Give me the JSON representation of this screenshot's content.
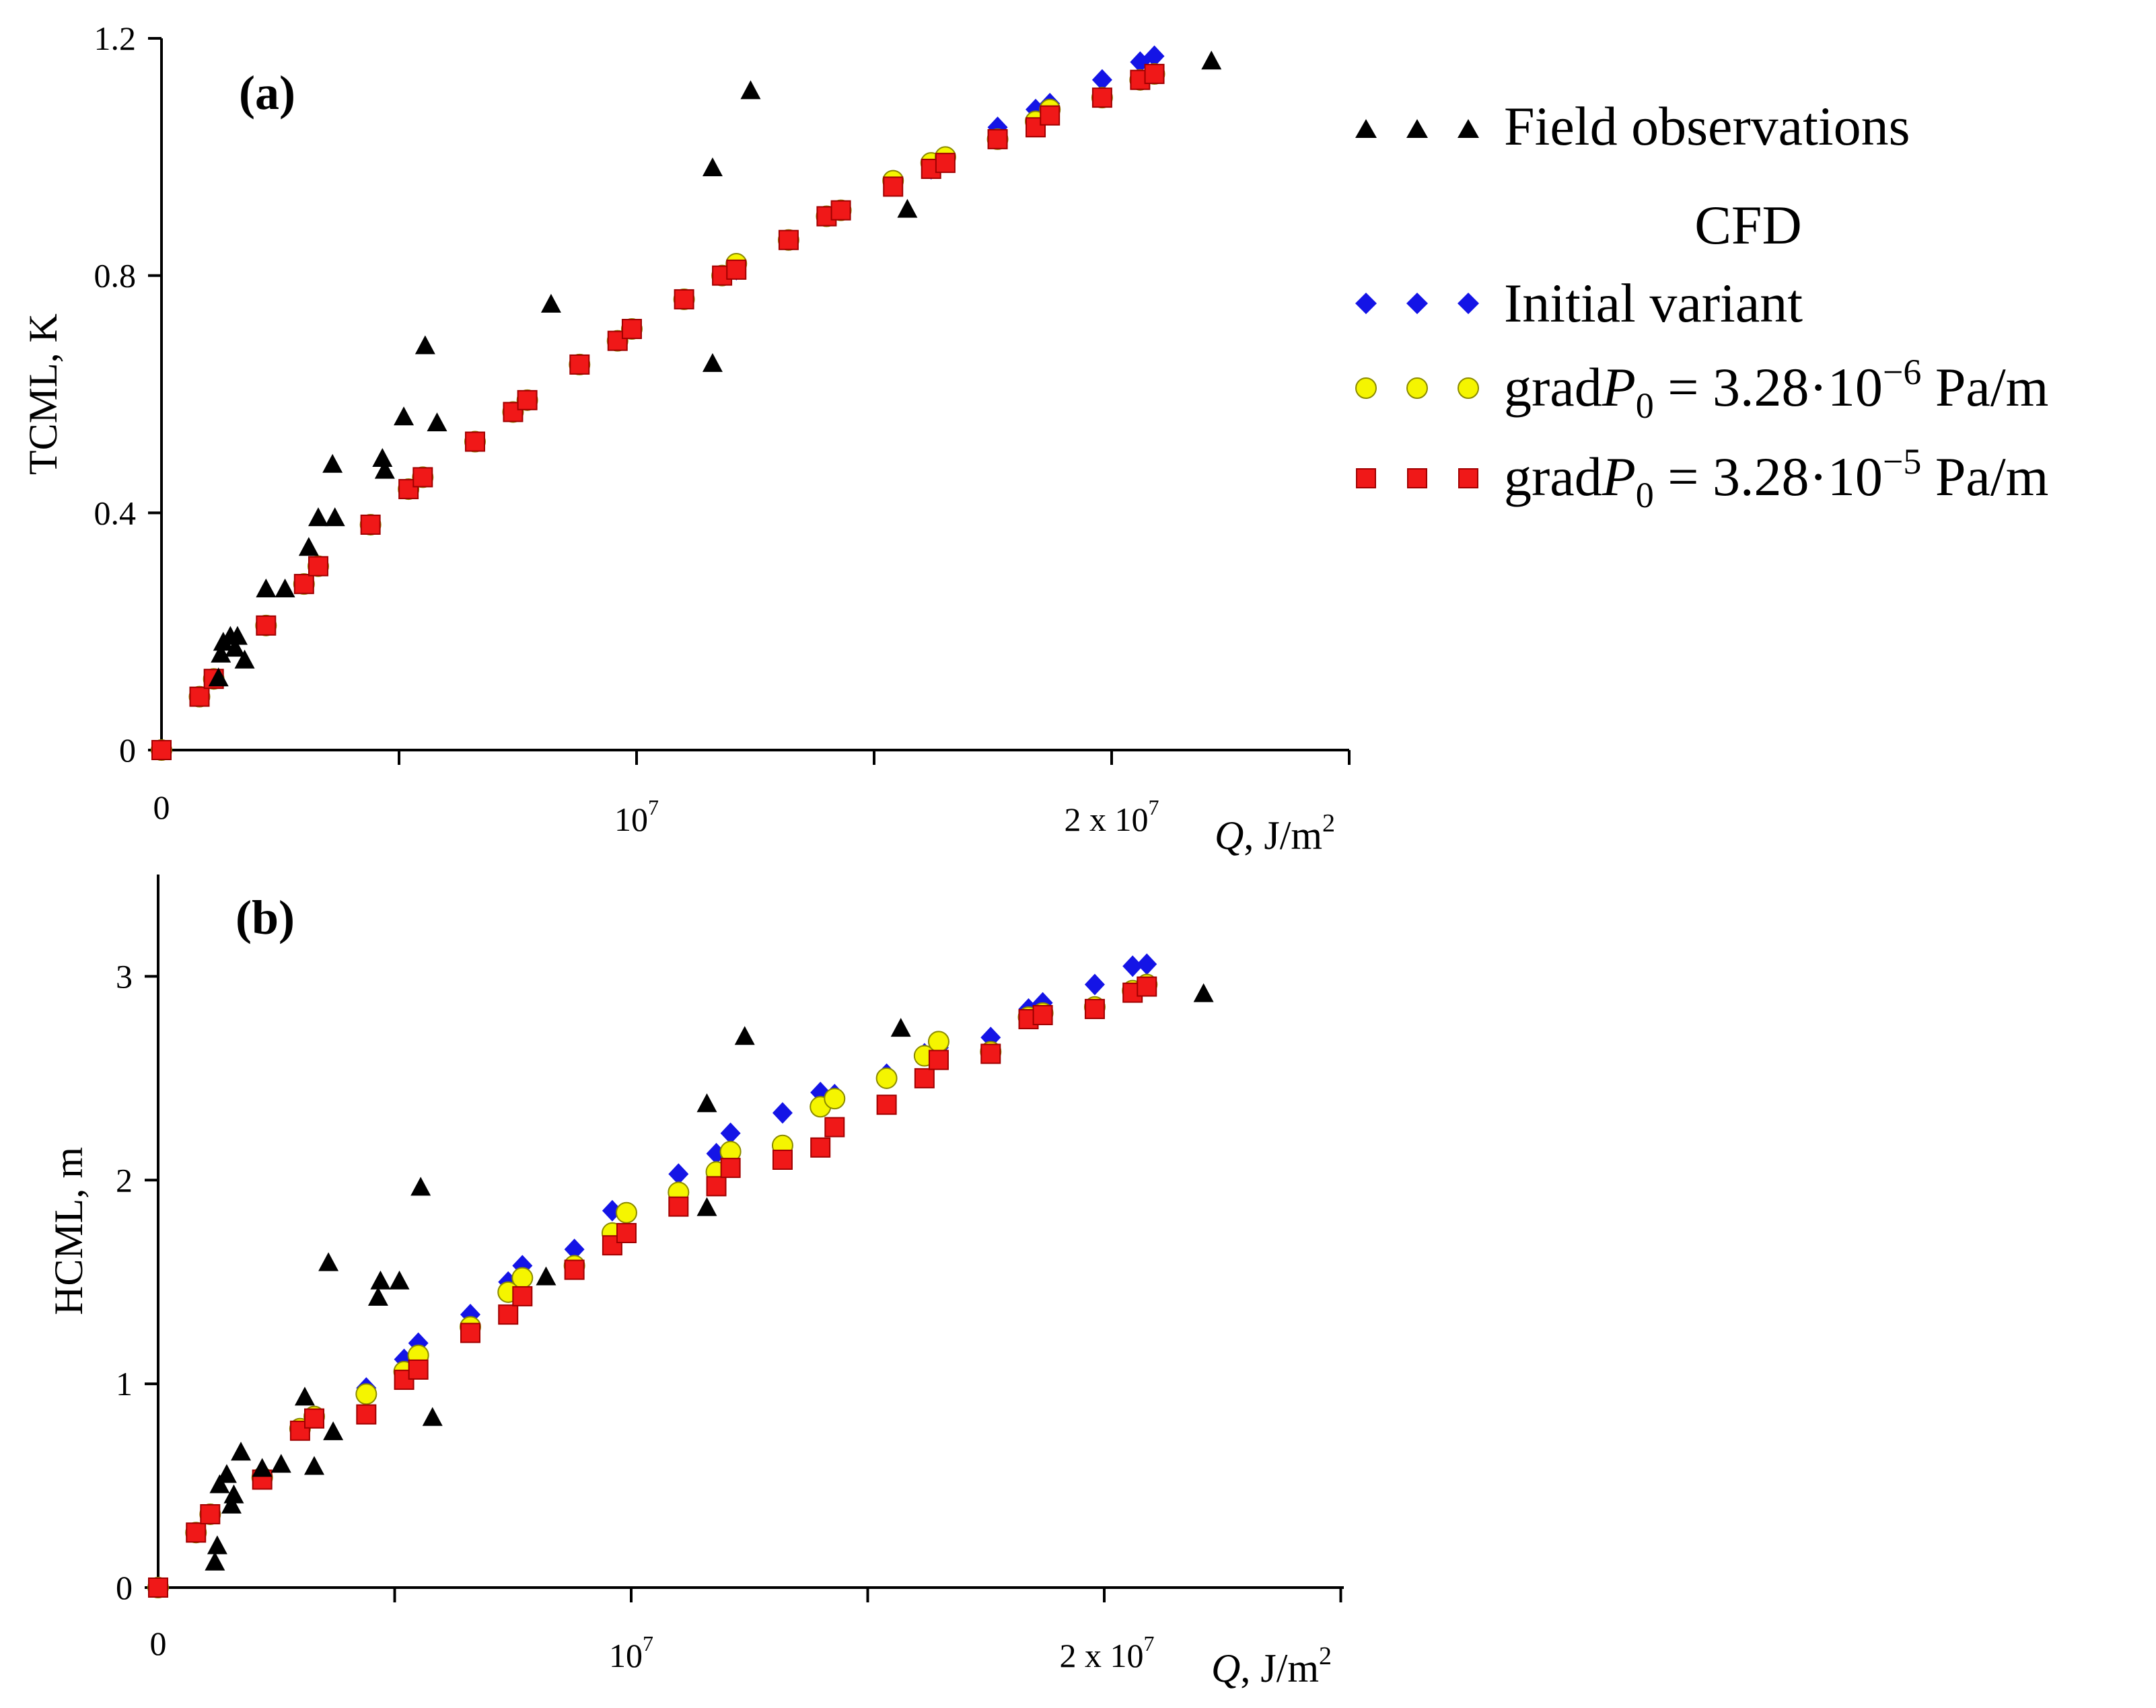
{
  "colors": {
    "field": "#000000",
    "initial": "#1414e6",
    "grad6": "#f5f500",
    "grad5": "#f01818",
    "axis": "#000000"
  },
  "legend": {
    "field_label": "Field observations",
    "cfd_heading": "CFD",
    "initial_label": "Initial variant",
    "grad6": {
      "base": "grad",
      "var": "P",
      "sub": "0",
      "eq": " = 3.28·10",
      "exp": "−6",
      "unit": " Pa/m"
    },
    "grad5": {
      "base": "grad",
      "var": "P",
      "sub": "0",
      "eq": " = 3.28·10",
      "exp": "−5",
      "unit": " Pa/m"
    }
  },
  "chart_data": [
    {
      "type": "scatter",
      "panel_label": "(a)",
      "ylabel": "TCML, K",
      "xlabel_var": "Q",
      "xlabel_unit": ", J/m",
      "xlabel_sup": "2",
      "xlim": [
        0,
        25000000
      ],
      "ylim": [
        0,
        1.2
      ],
      "x_tick_labels": [
        {
          "value": 0,
          "text": "0"
        },
        {
          "value": 10000000,
          "mant": "10",
          "exp": "7"
        },
        {
          "value": 20000000,
          "mant": "2 x 10",
          "exp": "7"
        }
      ],
      "y_ticks": [
        {
          "value": 0,
          "text": "0"
        },
        {
          "value": 0.4,
          "text": "0.4"
        },
        {
          "value": 0.8,
          "text": "0.8"
        },
        {
          "value": 1.2,
          "text": "1.2"
        }
      ],
      "series": [
        {
          "name": "Field observations",
          "marker": "triangle",
          "points": [
            [
              1200000,
              0.12
            ],
            [
              1250000,
              0.16
            ],
            [
              1300000,
              0.18
            ],
            [
              1450000,
              0.19
            ],
            [
              1550000,
              0.17
            ],
            [
              1600000,
              0.19
            ],
            [
              1750000,
              0.15
            ],
            [
              2200000,
              0.27
            ],
            [
              2600000,
              0.27
            ],
            [
              3100000,
              0.34
            ],
            [
              3300000,
              0.39
            ],
            [
              3600000,
              0.48
            ],
            [
              3650000,
              0.39
            ],
            [
              4650000,
              0.49
            ],
            [
              4700000,
              0.47
            ],
            [
              5100000,
              0.56
            ],
            [
              5550000,
              0.68
            ],
            [
              5800000,
              0.55
            ],
            [
              8200000,
              0.75
            ],
            [
              11600000,
              0.98
            ],
            [
              11600000,
              0.65
            ],
            [
              12400000,
              1.11
            ],
            [
              15700000,
              0.91
            ],
            [
              22100000,
              1.16
            ]
          ]
        },
        {
          "name": "Initial variant",
          "marker": "diamond",
          "points": [
            [
              0,
              0
            ],
            [
              800000,
              0.09
            ],
            [
              1100000,
              0.12
            ],
            [
              2200000,
              0.21
            ],
            [
              3000000,
              0.28
            ],
            [
              3300000,
              0.31
            ],
            [
              4400000,
              0.38
            ],
            [
              5200000,
              0.44
            ],
            [
              5500000,
              0.46
            ],
            [
              6600000,
              0.52
            ],
            [
              7400000,
              0.57
            ],
            [
              7700000,
              0.59
            ],
            [
              8800000,
              0.65
            ],
            [
              9600000,
              0.69
            ],
            [
              9900000,
              0.71
            ],
            [
              11000000,
              0.76
            ],
            [
              11800000,
              0.8
            ],
            [
              12100000,
              0.81
            ],
            [
              13200000,
              0.86
            ],
            [
              14000000,
              0.9
            ],
            [
              14300000,
              0.91
            ],
            [
              15400000,
              0.96
            ],
            [
              16200000,
              0.98
            ],
            [
              16500000,
              1.0
            ],
            [
              17600000,
              1.05
            ],
            [
              18400000,
              1.08
            ],
            [
              18700000,
              1.09
            ],
            [
              19800000,
              1.13
            ],
            [
              20600000,
              1.16
            ],
            [
              20900000,
              1.17
            ]
          ]
        },
        {
          "name": "gradP0 = 3.28·10−6 Pa/m",
          "marker": "circle",
          "points": [
            [
              0,
              0
            ],
            [
              800000,
              0.09
            ],
            [
              1100000,
              0.12
            ],
            [
              2200000,
              0.21
            ],
            [
              3000000,
              0.28
            ],
            [
              3300000,
              0.31
            ],
            [
              4400000,
              0.38
            ],
            [
              5200000,
              0.44
            ],
            [
              5500000,
              0.46
            ],
            [
              6600000,
              0.52
            ],
            [
              7400000,
              0.57
            ],
            [
              7700000,
              0.59
            ],
            [
              8800000,
              0.65
            ],
            [
              9600000,
              0.69
            ],
            [
              9900000,
              0.71
            ],
            [
              11000000,
              0.76
            ],
            [
              11800000,
              0.8
            ],
            [
              12100000,
              0.82
            ],
            [
              13200000,
              0.86
            ],
            [
              14000000,
              0.9
            ],
            [
              14300000,
              0.91
            ],
            [
              15400000,
              0.96
            ],
            [
              16200000,
              0.99
            ],
            [
              16500000,
              1.0
            ],
            [
              17600000,
              1.03
            ],
            [
              18400000,
              1.06
            ],
            [
              18700000,
              1.08
            ],
            [
              19800000,
              1.1
            ],
            [
              20600000,
              1.13
            ],
            [
              20900000,
              1.14
            ]
          ]
        },
        {
          "name": "gradP0 = 3.28·10−5 Pa/m",
          "marker": "square",
          "points": [
            [
              0,
              0
            ],
            [
              800000,
              0.09
            ],
            [
              1100000,
              0.12
            ],
            [
              2200000,
              0.21
            ],
            [
              3000000,
              0.28
            ],
            [
              3300000,
              0.31
            ],
            [
              4400000,
              0.38
            ],
            [
              5200000,
              0.44
            ],
            [
              5500000,
              0.46
            ],
            [
              6600000,
              0.52
            ],
            [
              7400000,
              0.57
            ],
            [
              7700000,
              0.59
            ],
            [
              8800000,
              0.65
            ],
            [
              9600000,
              0.69
            ],
            [
              9900000,
              0.71
            ],
            [
              11000000,
              0.76
            ],
            [
              11800000,
              0.8
            ],
            [
              12100000,
              0.81
            ],
            [
              13200000,
              0.86
            ],
            [
              14000000,
              0.9
            ],
            [
              14300000,
              0.91
            ],
            [
              15400000,
              0.95
            ],
            [
              16200000,
              0.98
            ],
            [
              16500000,
              0.99
            ],
            [
              17600000,
              1.03
            ],
            [
              18400000,
              1.05
            ],
            [
              18700000,
              1.07
            ],
            [
              19800000,
              1.1
            ],
            [
              20600000,
              1.13
            ],
            [
              20900000,
              1.14
            ]
          ]
        }
      ]
    },
    {
      "type": "scatter",
      "panel_label": "(b)",
      "ylabel": "HCML, m",
      "xlabel_var": "Q",
      "xlabel_unit": ", J/m",
      "xlabel_sup": "2",
      "xlim": [
        0,
        25000000
      ],
      "ylim": [
        0,
        3.5
      ],
      "x_tick_labels": [
        {
          "value": 0,
          "text": "0"
        },
        {
          "value": 10000000,
          "mant": "10",
          "exp": "7"
        },
        {
          "value": 20000000,
          "mant": "2 x 10",
          "exp": "7"
        }
      ],
      "y_ticks": [
        {
          "value": 0,
          "text": "0"
        },
        {
          "value": 1,
          "text": "1"
        },
        {
          "value": 2,
          "text": "2"
        },
        {
          "value": 3,
          "text": "3"
        }
      ],
      "series": [
        {
          "name": "Field observations",
          "marker": "triangle",
          "points": [
            [
              1200000,
              0.12
            ],
            [
              1250000,
              0.2
            ],
            [
              1300000,
              0.5
            ],
            [
              1450000,
              0.55
            ],
            [
              1550000,
              0.4
            ],
            [
              1600000,
              0.45
            ],
            [
              1750000,
              0.66
            ],
            [
              2200000,
              0.58
            ],
            [
              2600000,
              0.6
            ],
            [
              3100000,
              0.93
            ],
            [
              3300000,
              0.59
            ],
            [
              3600000,
              1.59
            ],
            [
              3700000,
              0.76
            ],
            [
              4650000,
              1.42
            ],
            [
              4700000,
              1.5
            ],
            [
              5100000,
              1.5
            ],
            [
              5550000,
              1.96
            ],
            [
              5800000,
              0.83
            ],
            [
              8200000,
              1.52
            ],
            [
              11600000,
              2.37
            ],
            [
              11600000,
              1.86
            ],
            [
              12400000,
              2.7
            ],
            [
              15700000,
              2.74
            ],
            [
              22100000,
              2.91
            ]
          ]
        },
        {
          "name": "Initial variant",
          "marker": "diamond",
          "points": [
            [
              0,
              0
            ],
            [
              800000,
              0.27
            ],
            [
              1100000,
              0.36
            ],
            [
              2200000,
              0.54
            ],
            [
              3000000,
              0.78
            ],
            [
              3300000,
              0.84
            ],
            [
              4400000,
              0.98
            ],
            [
              5200000,
              1.12
            ],
            [
              5500000,
              1.2
            ],
            [
              6600000,
              1.34
            ],
            [
              7400000,
              1.5
            ],
            [
              7700000,
              1.58
            ],
            [
              8800000,
              1.66
            ],
            [
              9600000,
              1.85
            ],
            [
              9900000,
              1.83
            ],
            [
              11000000,
              2.03
            ],
            [
              11800000,
              2.13
            ],
            [
              12100000,
              2.23
            ],
            [
              13200000,
              2.33
            ],
            [
              14000000,
              2.43
            ],
            [
              14300000,
              2.42
            ],
            [
              15400000,
              2.52
            ],
            [
              16200000,
              2.62
            ],
            [
              16500000,
              2.65
            ],
            [
              17600000,
              2.7
            ],
            [
              18400000,
              2.84
            ],
            [
              18700000,
              2.87
            ],
            [
              19800000,
              2.96
            ],
            [
              20600000,
              3.05
            ],
            [
              20900000,
              3.06
            ]
          ]
        },
        {
          "name": "gradP0 = 3.28·10−6 Pa/m",
          "marker": "circle",
          "points": [
            [
              0,
              0
            ],
            [
              800000,
              0.27
            ],
            [
              1100000,
              0.36
            ],
            [
              2200000,
              0.54
            ],
            [
              3000000,
              0.78
            ],
            [
              3300000,
              0.84
            ],
            [
              4400000,
              0.95
            ],
            [
              5200000,
              1.06
            ],
            [
              5500000,
              1.14
            ],
            [
              6600000,
              1.28
            ],
            [
              7400000,
              1.45
            ],
            [
              7700000,
              1.52
            ],
            [
              8800000,
              1.58
            ],
            [
              9600000,
              1.74
            ],
            [
              9900000,
              1.84
            ],
            [
              11000000,
              1.94
            ],
            [
              11800000,
              2.04
            ],
            [
              12100000,
              2.14
            ],
            [
              13200000,
              2.17
            ],
            [
              14000000,
              2.36
            ],
            [
              14300000,
              2.4
            ],
            [
              15400000,
              2.5
            ],
            [
              16200000,
              2.61
            ],
            [
              16500000,
              2.68
            ],
            [
              17600000,
              2.63
            ],
            [
              18400000,
              2.8
            ],
            [
              18700000,
              2.82
            ],
            [
              19800000,
              2.85
            ],
            [
              20600000,
              2.93
            ],
            [
              20900000,
              2.96
            ]
          ]
        },
        {
          "name": "gradP0 = 3.28·10−5 Pa/m",
          "marker": "square",
          "points": [
            [
              0,
              0
            ],
            [
              800000,
              0.27
            ],
            [
              1100000,
              0.36
            ],
            [
              2200000,
              0.53
            ],
            [
              3000000,
              0.77
            ],
            [
              3300000,
              0.83
            ],
            [
              4400000,
              0.85
            ],
            [
              5200000,
              1.02
            ],
            [
              5500000,
              1.07
            ],
            [
              6600000,
              1.25
            ],
            [
              7400000,
              1.34
            ],
            [
              7700000,
              1.43
            ],
            [
              8800000,
              1.56
            ],
            [
              9600000,
              1.68
            ],
            [
              9900000,
              1.74
            ],
            [
              11000000,
              1.87
            ],
            [
              11800000,
              1.97
            ],
            [
              12100000,
              2.06
            ],
            [
              13200000,
              2.1
            ],
            [
              14000000,
              2.16
            ],
            [
              14300000,
              2.26
            ],
            [
              15400000,
              2.37
            ],
            [
              16200000,
              2.5
            ],
            [
              16500000,
              2.59
            ],
            [
              17600000,
              2.62
            ],
            [
              18400000,
              2.79
            ],
            [
              18700000,
              2.81
            ],
            [
              19800000,
              2.84
            ],
            [
              20600000,
              2.92
            ],
            [
              20900000,
              2.95
            ]
          ]
        }
      ]
    }
  ]
}
